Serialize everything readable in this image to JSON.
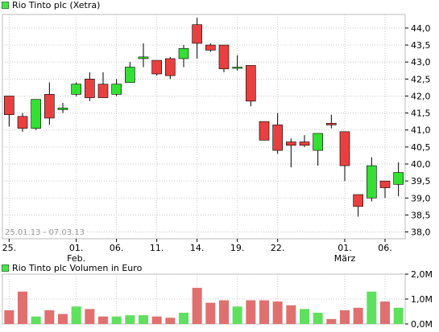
{
  "chart_data": [
    {
      "type": "candlestick",
      "title": "Rio Tinto plc (Xetra)",
      "range_label": "25.01.13 - 07.03.13",
      "x_tick_labels": [
        "25.",
        "01.",
        "06.",
        "11.",
        "14.",
        "19.",
        "22.",
        "01.",
        "06."
      ],
      "x_tick_sublabels": {
        "01.": "Feb.",
        "01.#2": "März"
      },
      "y_tick_labels": [
        "44,0",
        "43,5",
        "43,0",
        "42,5",
        "42,0",
        "41,5",
        "41,0",
        "40,5",
        "40,0",
        "39,5",
        "39,0",
        "38,5",
        "38,0"
      ],
      "ylim": [
        37.8,
        44.4
      ],
      "grid": true,
      "colors": {
        "up": "#33e033",
        "down": "#e84040",
        "grid": "#c8c8c8",
        "axis": "#000000"
      },
      "series": [
        {
          "date": "25.01.",
          "open": 42.0,
          "high": 42.0,
          "low": 41.1,
          "close": 41.45
        },
        {
          "date": "28.01.",
          "open": 41.4,
          "high": 41.5,
          "low": 40.95,
          "close": 41.05
        },
        {
          "date": "29.01.",
          "open": 41.05,
          "high": 41.9,
          "low": 41.0,
          "close": 41.9
        },
        {
          "date": "30.01.",
          "open": 42.05,
          "high": 42.4,
          "low": 41.15,
          "close": 41.35
        },
        {
          "date": "31.01.",
          "open": 41.6,
          "high": 41.8,
          "low": 41.5,
          "close": 41.65
        },
        {
          "date": "01.02.",
          "open": 42.05,
          "high": 42.4,
          "low": 42.0,
          "close": 42.35
        },
        {
          "date": "04.02.",
          "open": 42.5,
          "high": 42.7,
          "low": 41.85,
          "close": 41.95
        },
        {
          "date": "05.02.",
          "open": 42.35,
          "high": 42.7,
          "low": 41.95,
          "close": 41.95
        },
        {
          "date": "06.02.",
          "open": 42.05,
          "high": 42.5,
          "low": 42.0,
          "close": 42.35
        },
        {
          "date": "07.02.",
          "open": 42.4,
          "high": 43.0,
          "low": 42.4,
          "close": 42.85
        },
        {
          "date": "08.02.",
          "open": 43.1,
          "high": 43.55,
          "low": 42.85,
          "close": 43.15
        },
        {
          "date": "11.02.",
          "open": 43.05,
          "high": 43.05,
          "low": 42.6,
          "close": 42.65
        },
        {
          "date": "12.02.",
          "open": 43.1,
          "high": 43.15,
          "low": 42.5,
          "close": 42.6
        },
        {
          "date": "13.02.",
          "open": 43.1,
          "high": 43.5,
          "low": 42.85,
          "close": 43.4
        },
        {
          "date": "14.02.",
          "open": 44.1,
          "high": 44.3,
          "low": 43.1,
          "close": 43.55
        },
        {
          "date": "15.02.",
          "open": 43.5,
          "high": 43.55,
          "low": 43.3,
          "close": 43.35
        },
        {
          "date": "18.02.",
          "open": 43.5,
          "high": 43.5,
          "low": 42.7,
          "close": 42.8
        },
        {
          "date": "19.02.",
          "open": 42.85,
          "high": 43.2,
          "low": 42.75,
          "close": 42.85
        },
        {
          "date": "20.02.",
          "open": 42.9,
          "high": 42.9,
          "low": 41.7,
          "close": 41.85
        },
        {
          "date": "21.02.",
          "open": 41.25,
          "high": 41.25,
          "low": 40.7,
          "close": 40.7
        },
        {
          "date": "22.02.",
          "open": 41.15,
          "high": 41.5,
          "low": 40.3,
          "close": 40.4
        },
        {
          "date": "25.02.",
          "open": 40.65,
          "high": 40.75,
          "low": 39.9,
          "close": 40.55
        },
        {
          "date": "26.02.",
          "open": 40.65,
          "high": 40.85,
          "low": 40.5,
          "close": 40.55
        },
        {
          "date": "27.02.",
          "open": 40.4,
          "high": 40.9,
          "low": 39.95,
          "close": 40.9
        },
        {
          "date": "28.02.",
          "open": 41.2,
          "high": 41.45,
          "low": 41.05,
          "close": 41.15
        },
        {
          "date": "01.03.",
          "open": 40.95,
          "high": 40.95,
          "low": 39.5,
          "close": 39.95
        },
        {
          "date": "04.03.",
          "open": 39.1,
          "high": 39.1,
          "low": 38.45,
          "close": 38.75
        },
        {
          "date": "05.03.",
          "open": 39.0,
          "high": 40.2,
          "low": 38.9,
          "close": 39.95
        },
        {
          "date": "06.03.",
          "open": 39.5,
          "high": 39.5,
          "low": 39.0,
          "close": 39.3
        },
        {
          "date": "07.03.",
          "open": 39.4,
          "high": 40.05,
          "low": 39.05,
          "close": 39.75
        }
      ]
    },
    {
      "type": "bar",
      "title": "Rio Tinto plc Volumen in Euro",
      "y_tick_labels": [
        "2,0M",
        "1,0M",
        "0,0M"
      ],
      "ylim": [
        0,
        2.0
      ],
      "unit": "M EUR",
      "values": [
        0.55,
        1.3,
        0.3,
        0.55,
        0.4,
        0.7,
        0.6,
        0.3,
        0.3,
        0.35,
        0.35,
        0.3,
        0.25,
        0.45,
        1.45,
        0.85,
        0.95,
        0.7,
        0.95,
        0.95,
        0.9,
        0.75,
        0.6,
        0.45,
        0.2,
        0.55,
        0.65,
        1.3,
        0.9,
        0.65
      ],
      "up_flags": [
        false,
        false,
        true,
        false,
        false,
        true,
        false,
        false,
        true,
        true,
        true,
        false,
        false,
        true,
        false,
        false,
        false,
        true,
        false,
        false,
        false,
        false,
        true,
        true,
        false,
        false,
        false,
        true,
        false,
        true
      ]
    }
  ]
}
